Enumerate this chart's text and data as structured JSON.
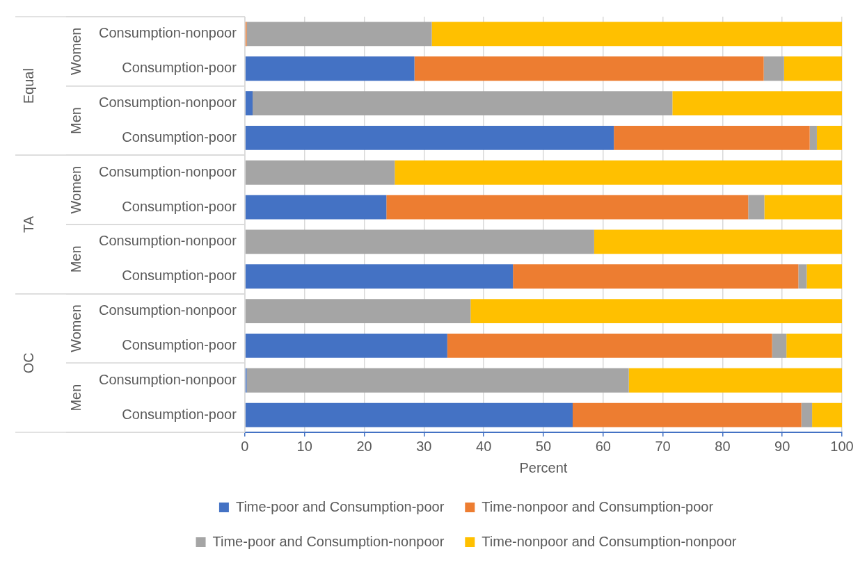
{
  "chart_data": {
    "type": "bar",
    "orientation": "horizontal",
    "stacked": true,
    "categories": [
      "Consumption-nonpoor",
      "Consumption-poor",
      "Consumption-nonpoor",
      "Consumption-poor",
      "Consumption-nonpoor",
      "Consumption-poor",
      "Consumption-nonpoor",
      "Consumption-poor",
      "Consumption-nonpoor",
      "Consumption-poor",
      "Consumption-nonpoor",
      "Consumption-poor"
    ],
    "series": [
      {
        "name": "Time-poor and Consumption-poor",
        "color": "#4472c4",
        "values": [
          0,
          28.4,
          1.3,
          61.8,
          0,
          23.7,
          0,
          44.9,
          0,
          33.9,
          0.3,
          54.9
        ]
      },
      {
        "name": "Time-nonpoor and Consumption-poor",
        "color": "#ed7d31",
        "values": [
          0.3,
          58.5,
          0,
          32.8,
          0,
          60.6,
          0,
          47.8,
          0,
          54.4,
          0,
          38.3
        ]
      },
      {
        "name": "Time-poor and Consumption-nonpoor",
        "color": "#a5a5a5",
        "values": [
          31.0,
          3.4,
          70.3,
          1.2,
          25.1,
          2.7,
          58.5,
          1.4,
          37.8,
          2.4,
          64.0,
          1.8
        ]
      },
      {
        "name": "Time-nonpoor and Consumption-nonpoor",
        "color": "#ffc000",
        "values": [
          68.7,
          9.7,
          28.4,
          4.2,
          74.9,
          13.0,
          41.5,
          5.9,
          62.2,
          9.3,
          35.7,
          5.0
        ]
      }
    ],
    "xlabel": "Percent",
    "xlim": [
      0,
      100
    ],
    "xticks": [
      0,
      10,
      20,
      30,
      40,
      50,
      60,
      70,
      80,
      90,
      100
    ],
    "grid": "x",
    "legend": "bottom",
    "annotations": [
      "Women",
      "Men",
      "Women",
      "Men",
      "Women",
      "Men",
      "Equal",
      "TA",
      "OC"
    ]
  }
}
